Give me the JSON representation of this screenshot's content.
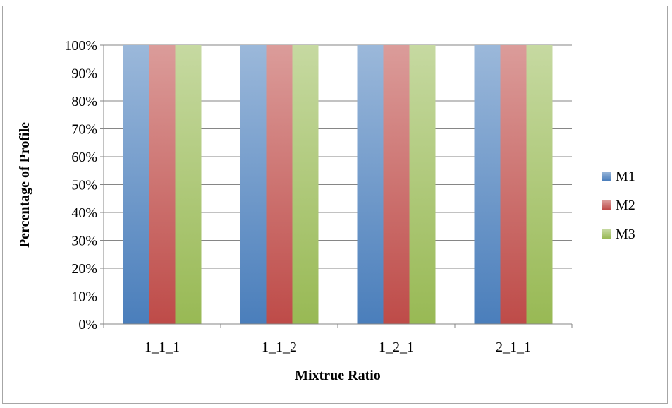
{
  "chart_data": {
    "type": "bar",
    "title": "",
    "xlabel": "Mixtrue Ratio",
    "ylabel": "Percentage of Profile",
    "categories": [
      "1_1_1",
      "1_1_2",
      "1_2_1",
      "2_1_1"
    ],
    "ylim": [
      0,
      100
    ],
    "y_ticks": [
      "0%",
      "10%",
      "20%",
      "30%",
      "40%",
      "50%",
      "60%",
      "70%",
      "80%",
      "90%",
      "100%"
    ],
    "grid": true,
    "legend_position": "right",
    "series": [
      {
        "name": "M1",
        "values": [
          100,
          100,
          100,
          100
        ],
        "color": "#4a7ebb"
      },
      {
        "name": "M2",
        "values": [
          100,
          100,
          100,
          100
        ],
        "color": "#be4b48"
      },
      {
        "name": "M3",
        "values": [
          100,
          100,
          100,
          100
        ],
        "color": "#98b954"
      }
    ]
  }
}
